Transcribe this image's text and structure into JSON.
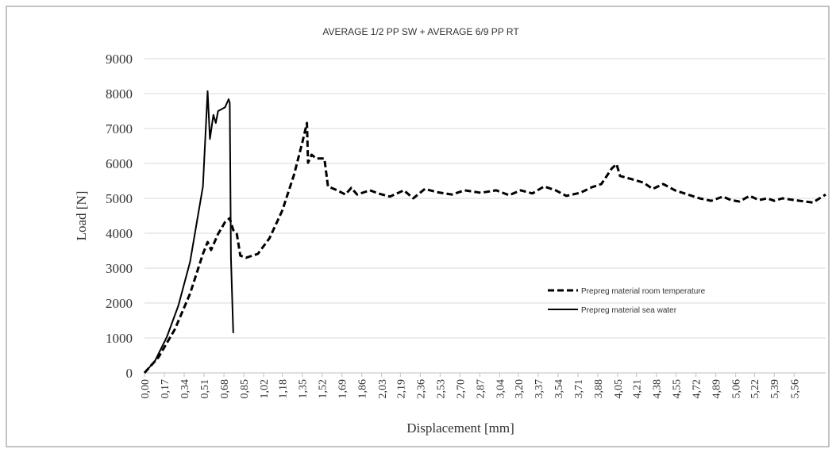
{
  "chart_data": {
    "type": "line",
    "title": "AVERAGE 1/2 PP SW + AVERAGE 6/9 PP RT",
    "x_label": "Displacement [mm]",
    "y_label": "Load [N]",
    "xlim": [
      0,
      5.83
    ],
    "ylim": [
      0,
      9000
    ],
    "yticks": [
      0,
      1000,
      2000,
      3000,
      4000,
      5000,
      6000,
      7000,
      8000,
      9000
    ],
    "xticks": [
      {
        "value": 0,
        "label": "0,00"
      },
      {
        "value": 0.17,
        "label": "0,17"
      },
      {
        "value": 0.34,
        "label": "0,34"
      },
      {
        "value": 0.51,
        "label": "0,51"
      },
      {
        "value": 0.68,
        "label": "0,68"
      },
      {
        "value": 0.85,
        "label": "0,85"
      },
      {
        "value": 1.02,
        "label": "1,02"
      },
      {
        "value": 1.18,
        "label": "1,18"
      },
      {
        "value": 1.35,
        "label": "1,35"
      },
      {
        "value": 1.52,
        "label": "1,52"
      },
      {
        "value": 1.69,
        "label": "1,69"
      },
      {
        "value": 1.86,
        "label": "1,86"
      },
      {
        "value": 2.03,
        "label": "2,03"
      },
      {
        "value": 2.19,
        "label": "2,19"
      },
      {
        "value": 2.36,
        "label": "2,36"
      },
      {
        "value": 2.53,
        "label": "2,53"
      },
      {
        "value": 2.7,
        "label": "2,70"
      },
      {
        "value": 2.87,
        "label": "2,87"
      },
      {
        "value": 3.04,
        "label": "3,04"
      },
      {
        "value": 3.2,
        "label": "3,20"
      },
      {
        "value": 3.37,
        "label": "3,37"
      },
      {
        "value": 3.54,
        "label": "3,54"
      },
      {
        "value": 3.71,
        "label": "3,71"
      },
      {
        "value": 3.88,
        "label": "3,88"
      },
      {
        "value": 4.05,
        "label": "4,05"
      },
      {
        "value": 4.21,
        "label": "4,21"
      },
      {
        "value": 4.38,
        "label": "4,38"
      },
      {
        "value": 4.55,
        "label": "4,55"
      },
      {
        "value": 4.72,
        "label": "4,72"
      },
      {
        "value": 4.89,
        "label": "4,89"
      },
      {
        "value": 5.06,
        "label": "5,06"
      },
      {
        "value": 5.22,
        "label": "5,22"
      },
      {
        "value": 5.39,
        "label": "5,39"
      },
      {
        "value": 5.56,
        "label": "5,56"
      }
    ],
    "grid": true,
    "legend": "right",
    "series": [
      {
        "name": "Prepreg material room temperature",
        "color": "#000000",
        "line_style": "dashed",
        "x": [
          0,
          0.12,
          0.26,
          0.39,
          0.5,
          0.54,
          0.57,
          0.63,
          0.69,
          0.73,
          0.76,
          0.79,
          0.82,
          0.87,
          0.97,
          1.07,
          1.18,
          1.28,
          1.35,
          1.39,
          1.4,
          1.43,
          1.47,
          1.54,
          1.57,
          1.65,
          1.72,
          1.77,
          1.82,
          1.93,
          2.0,
          2.1,
          2.22,
          2.3,
          2.4,
          2.5,
          2.63,
          2.74,
          2.88,
          3.01,
          3.12,
          3.22,
          3.32,
          3.42,
          3.52,
          3.61,
          3.73,
          3.83,
          3.91,
          4.0,
          4.04,
          4.07,
          4.17,
          4.27,
          4.35,
          4.44,
          4.54,
          4.65,
          4.75,
          4.85,
          4.95,
          5.02,
          5.09,
          5.18,
          5.26,
          5.33,
          5.39,
          5.46,
          5.56,
          5.72,
          5.83
        ],
        "values": [
          0,
          450,
          1250,
          2270,
          3410,
          3750,
          3520,
          3980,
          4320,
          4430,
          4090,
          3980,
          3360,
          3300,
          3410,
          3860,
          4660,
          5680,
          6590,
          7160,
          6020,
          6250,
          6140,
          6140,
          5340,
          5230,
          5110,
          5300,
          5110,
          5230,
          5140,
          5050,
          5230,
          5000,
          5270,
          5180,
          5110,
          5230,
          5160,
          5230,
          5090,
          5230,
          5140,
          5340,
          5230,
          5070,
          5160,
          5320,
          5410,
          5860,
          5980,
          5640,
          5550,
          5450,
          5270,
          5410,
          5230,
          5110,
          5000,
          4930,
          5050,
          4950,
          4910,
          5070,
          4950,
          5000,
          4930,
          5000,
          4950,
          4880,
          5110
        ]
      },
      {
        "name": "Prepreg material sea water",
        "color": "#000000",
        "line_style": "solid",
        "x": [
          0,
          0.09,
          0.19,
          0.29,
          0.39,
          0.5,
          0.54,
          0.56,
          0.59,
          0.61,
          0.63,
          0.69,
          0.72,
          0.73,
          0.74,
          0.76
        ],
        "values": [
          0,
          340,
          1020,
          1930,
          3180,
          5340,
          8070,
          6700,
          7390,
          7160,
          7500,
          7610,
          7840,
          7730,
          3300,
          1140
        ]
      }
    ]
  }
}
